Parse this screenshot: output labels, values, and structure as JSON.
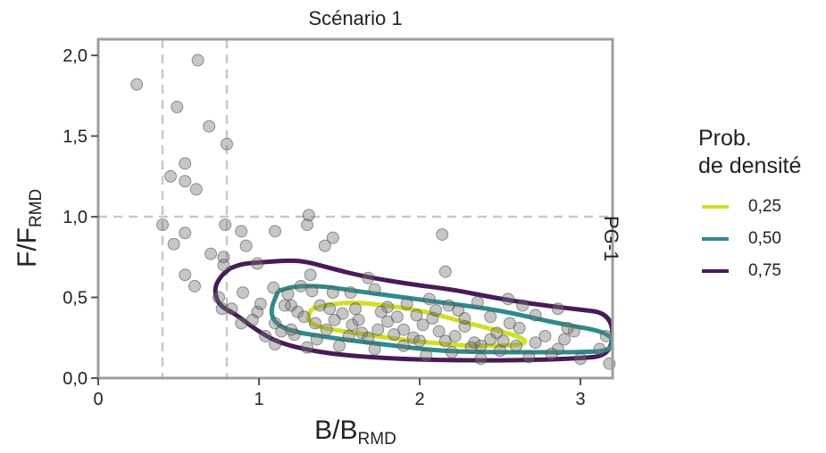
{
  "chart_data": {
    "type": "scatter",
    "title": "Scénario 1",
    "facet_label": "PG-1",
    "xlabel": {
      "main": "B/B",
      "sub": "RMD"
    },
    "ylabel": {
      "main": "F/F",
      "sub": "RMD"
    },
    "xlim": [
      0,
      3.2
    ],
    "ylim": [
      0,
      2.1
    ],
    "xticks": [
      0,
      1,
      2,
      3
    ],
    "yticks": [
      0.0,
      0.5,
      1.0,
      1.5,
      2.0
    ],
    "xtick_labels": [
      "0",
      "1",
      "2",
      "3"
    ],
    "ytick_labels": [
      "0,0",
      "0,5",
      "1,0",
      "1,5",
      "2,0"
    ],
    "reference_lines": {
      "vertical": [
        0.4,
        0.8
      ],
      "horizontal": [
        1.0
      ]
    },
    "legend": {
      "title": "Prob.\nde densité",
      "position": "right",
      "entries": [
        {
          "label": "0,25",
          "color": "#d2de26"
        },
        {
          "label": "0,50",
          "color": "#2e8b8c"
        },
        {
          "label": "0,75",
          "color": "#481a5a"
        }
      ]
    },
    "points": [
      [
        0.24,
        1.82
      ],
      [
        0.62,
        1.97
      ],
      [
        0.49,
        1.68
      ],
      [
        0.69,
        1.56
      ],
      [
        0.8,
        1.45
      ],
      [
        0.54,
        1.33
      ],
      [
        0.45,
        1.25
      ],
      [
        0.54,
        1.22
      ],
      [
        0.61,
        1.17
      ],
      [
        0.4,
        0.95
      ],
      [
        0.79,
        0.95
      ],
      [
        0.89,
        0.91
      ],
      [
        1.1,
        0.91
      ],
      [
        1.31,
        1.01
      ],
      [
        1.3,
        0.95
      ],
      [
        1.46,
        0.87
      ],
      [
        1.41,
        0.82
      ],
      [
        2.14,
        0.89
      ],
      [
        0.47,
        0.83
      ],
      [
        0.54,
        0.9
      ],
      [
        0.92,
        0.82
      ],
      [
        0.7,
        0.77
      ],
      [
        0.78,
        0.75
      ],
      [
        0.99,
        0.71
      ],
      [
        1.32,
        0.64
      ],
      [
        1.68,
        0.62
      ],
      [
        2.16,
        0.66
      ],
      [
        0.54,
        0.64
      ],
      [
        0.78,
        0.7
      ],
      [
        0.6,
        0.57
      ],
      [
        0.75,
        0.5
      ],
      [
        0.9,
        0.53
      ],
      [
        1.09,
        0.56
      ],
      [
        1.26,
        0.57
      ],
      [
        1.33,
        0.54
      ],
      [
        1.46,
        0.53
      ],
      [
        1.57,
        0.53
      ],
      [
        1.72,
        0.55
      ],
      [
        0.77,
        0.43
      ],
      [
        0.83,
        0.43
      ],
      [
        0.89,
        0.34
      ],
      [
        0.99,
        0.41
      ],
      [
        1.01,
        0.46
      ],
      [
        1.18,
        0.52
      ],
      [
        1.2,
        0.45
      ],
      [
        1.24,
        0.41
      ],
      [
        1.38,
        0.45
      ],
      [
        1.6,
        0.43
      ],
      [
        1.8,
        0.44
      ],
      [
        1.92,
        0.46
      ],
      [
        2.06,
        0.49
      ],
      [
        2.18,
        0.45
      ],
      [
        2.24,
        0.42
      ],
      [
        2.36,
        0.47
      ],
      [
        2.55,
        0.49
      ],
      [
        2.64,
        0.45
      ],
      [
        2.86,
        0.43
      ],
      [
        1.1,
        0.34
      ],
      [
        1.14,
        0.29
      ],
      [
        1.22,
        0.27
      ],
      [
        1.28,
        0.38
      ],
      [
        1.35,
        0.34
      ],
      [
        1.42,
        0.3
      ],
      [
        1.47,
        0.36
      ],
      [
        1.52,
        0.4
      ],
      [
        1.58,
        0.33
      ],
      [
        1.64,
        0.28
      ],
      [
        1.68,
        0.25
      ],
      [
        1.74,
        0.3
      ],
      [
        1.8,
        0.35
      ],
      [
        1.86,
        0.38
      ],
      [
        1.9,
        0.3
      ],
      [
        1.96,
        0.25
      ],
      [
        2.02,
        0.33
      ],
      [
        2.08,
        0.37
      ],
      [
        2.12,
        0.29
      ],
      [
        2.16,
        0.23
      ],
      [
        2.22,
        0.26
      ],
      [
        2.28,
        0.32
      ],
      [
        2.34,
        0.22
      ],
      [
        2.38,
        0.2
      ],
      [
        2.44,
        0.24
      ],
      [
        2.48,
        0.28
      ],
      [
        2.56,
        0.34
      ],
      [
        2.62,
        0.31
      ],
      [
        2.72,
        0.22
      ],
      [
        2.78,
        0.26
      ],
      [
        2.86,
        0.18
      ],
      [
        2.9,
        0.24
      ],
      [
        2.96,
        0.29
      ],
      [
        1.1,
        0.21
      ],
      [
        1.3,
        0.19
      ],
      [
        1.5,
        0.2
      ],
      [
        1.72,
        0.18
      ],
      [
        1.9,
        0.2
      ],
      [
        2.04,
        0.14
      ],
      [
        2.2,
        0.16
      ],
      [
        2.38,
        0.12
      ],
      [
        2.5,
        0.17
      ],
      [
        2.68,
        0.13
      ],
      [
        2.82,
        0.15
      ],
      [
        3.0,
        0.12
      ],
      [
        3.12,
        0.18
      ],
      [
        3.18,
        0.09
      ],
      [
        1.2,
        0.3
      ],
      [
        1.36,
        0.24
      ],
      [
        1.56,
        0.26
      ],
      [
        1.62,
        0.36
      ],
      [
        1.76,
        0.41
      ],
      [
        1.98,
        0.39
      ],
      [
        2.1,
        0.42
      ],
      [
        2.28,
        0.37
      ],
      [
        2.44,
        0.38
      ],
      [
        2.72,
        0.39
      ],
      [
        3.16,
        0.26
      ],
      [
        1.04,
        0.26
      ],
      [
        0.96,
        0.36
      ],
      [
        1.16,
        0.45
      ],
      [
        1.44,
        0.43
      ],
      [
        1.84,
        0.27
      ],
      [
        2.0,
        0.23
      ],
      [
        2.32,
        0.19
      ],
      [
        2.52,
        0.23
      ],
      [
        2.6,
        0.2
      ],
      [
        2.92,
        0.31
      ]
    ],
    "contours": [
      {
        "level": "0,75",
        "color": "#481a5a",
        "points": [
          [
            0.82,
            0.68
          ],
          [
            0.9,
            0.71
          ],
          [
            1.05,
            0.72
          ],
          [
            1.2,
            0.73
          ],
          [
            1.3,
            0.72
          ],
          [
            1.45,
            0.68
          ],
          [
            1.65,
            0.63
          ],
          [
            1.95,
            0.58
          ],
          [
            2.2,
            0.55
          ],
          [
            2.45,
            0.5
          ],
          [
            2.7,
            0.46
          ],
          [
            2.95,
            0.43
          ],
          [
            3.2,
            0.4
          ],
          [
            3.2,
            0.14
          ],
          [
            2.95,
            0.12
          ],
          [
            2.6,
            0.11
          ],
          [
            2.2,
            0.11
          ],
          [
            1.85,
            0.12
          ],
          [
            1.55,
            0.14
          ],
          [
            1.32,
            0.17
          ],
          [
            1.12,
            0.22
          ],
          [
            0.98,
            0.3
          ],
          [
            0.85,
            0.4
          ],
          [
            0.75,
            0.45
          ],
          [
            0.72,
            0.55
          ],
          [
            0.76,
            0.63
          ],
          [
            0.82,
            0.68
          ]
        ]
      },
      {
        "level": "0,50",
        "color": "#2e8b8c",
        "points": [
          [
            1.12,
            0.54
          ],
          [
            1.22,
            0.57
          ],
          [
            1.4,
            0.57
          ],
          [
            1.6,
            0.54
          ],
          [
            1.9,
            0.5
          ],
          [
            2.2,
            0.46
          ],
          [
            2.5,
            0.42
          ],
          [
            2.85,
            0.34
          ],
          [
            3.2,
            0.28
          ],
          [
            3.2,
            0.17
          ],
          [
            3.0,
            0.16
          ],
          [
            2.7,
            0.16
          ],
          [
            2.4,
            0.16
          ],
          [
            2.1,
            0.17
          ],
          [
            1.85,
            0.2
          ],
          [
            1.6,
            0.23
          ],
          [
            1.38,
            0.26
          ],
          [
            1.2,
            0.29
          ],
          [
            1.1,
            0.34
          ],
          [
            1.07,
            0.42
          ],
          [
            1.12,
            0.54
          ]
        ]
      },
      {
        "level": "0,25",
        "color": "#d2de26",
        "points": [
          [
            1.33,
            0.43
          ],
          [
            1.45,
            0.46
          ],
          [
            1.6,
            0.47
          ],
          [
            1.8,
            0.45
          ],
          [
            2.05,
            0.41
          ],
          [
            2.3,
            0.34
          ],
          [
            2.55,
            0.28
          ],
          [
            2.68,
            0.23
          ],
          [
            2.6,
            0.2
          ],
          [
            2.3,
            0.2
          ],
          [
            2.05,
            0.22
          ],
          [
            1.8,
            0.25
          ],
          [
            1.6,
            0.28
          ],
          [
            1.45,
            0.3
          ],
          [
            1.33,
            0.33
          ],
          [
            1.3,
            0.38
          ],
          [
            1.33,
            0.43
          ]
        ]
      }
    ]
  }
}
